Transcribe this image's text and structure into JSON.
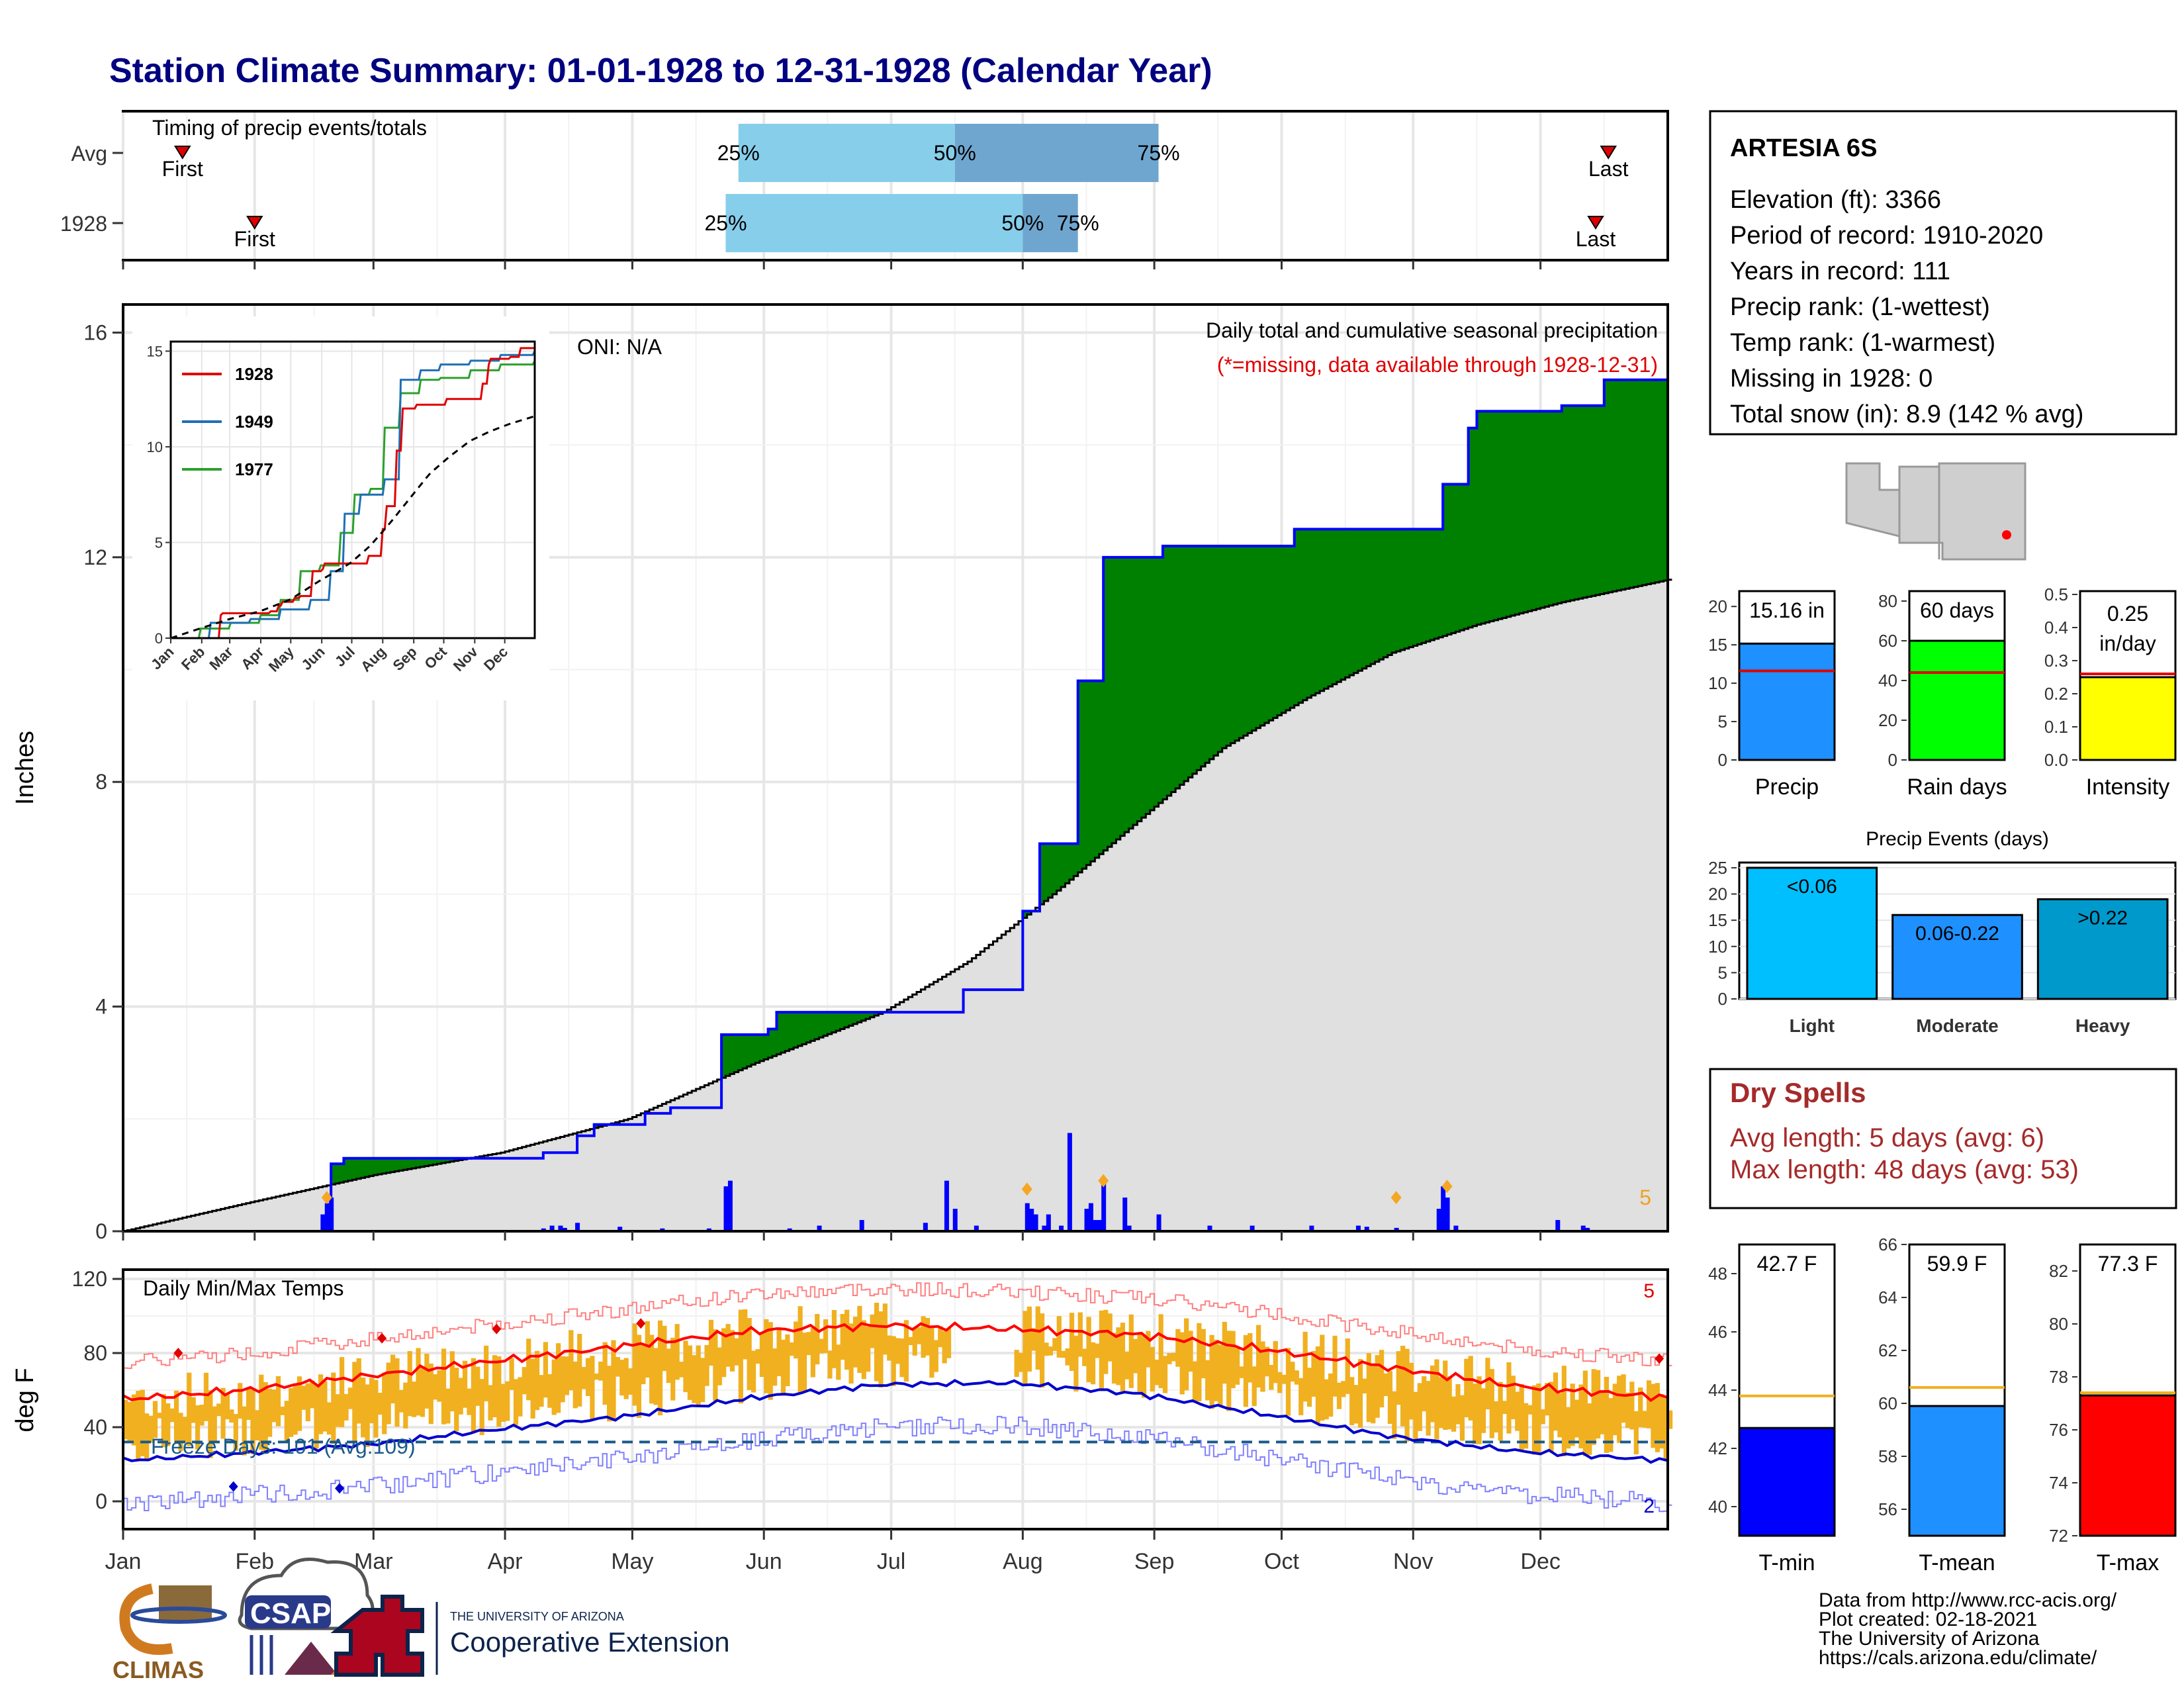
{
  "title": "Station Climate Summary: 01-01-1928 to 12-31-1928 (Calendar Year)",
  "colors": {
    "title": "#000080",
    "green": "#008000",
    "brown": "#8B5A00",
    "gray": "#e0e0e0",
    "blue": "#0000ff",
    "red": "#ff0000",
    "orange": "#f0b020",
    "lightblue": "#87ceeb",
    "midblue": "#6fa6cf"
  },
  "timing": {
    "label": "Timing of precip events/totals",
    "rows": [
      {
        "name": "Avg",
        "first_day": 15,
        "q25_day": 146,
        "q50_day": 197,
        "q75_day": 245,
        "last_day": 351,
        "labels": [
          "First",
          "25%",
          "50%",
          "75%",
          "Last"
        ]
      },
      {
        "name": "1928",
        "first_day": 32,
        "q25_day": 143,
        "q50_day": 213,
        "q75_day": 226,
        "last_day": 348,
        "labels": [
          "First",
          "25%",
          "50%",
          "75%",
          "Last"
        ]
      }
    ]
  },
  "precip": {
    "ylabel": "Inches",
    "yticks": [
      "0",
      "4",
      "8",
      "12",
      "16"
    ],
    "title": "Daily total and cumulative seasonal precipitation",
    "subtitle": "(*=missing, data available through 1928-12-31)",
    "oni": "ONI: N/A",
    "corner_count": "5"
  },
  "chart_data": [
    {
      "type": "area",
      "name": "cumulative precipitation 1928 vs average",
      "x_unit": "day of year",
      "series": [
        {
          "name": "1928 cumulative",
          "x": [
            1,
            45,
            50,
            53,
            80,
            100,
            108,
            112,
            120,
            124,
            130,
            142,
            153,
            155,
            170,
            180,
            190,
            199,
            210,
            213,
            217,
            220,
            226,
            232,
            246,
            277,
            292,
            312,
            318,
            320,
            340,
            350,
            365
          ],
          "values": [
            0,
            0,
            1.2,
            1.3,
            1.3,
            1.4,
            1.7,
            1.9,
            1.9,
            2.1,
            2.2,
            3.5,
            3.6,
            3.9,
            3.9,
            3.9,
            3.9,
            4.3,
            4.3,
            5.7,
            6.9,
            6.9,
            9.8,
            12.0,
            12.2,
            12.5,
            12.5,
            13.3,
            14.3,
            14.6,
            14.7,
            15.16,
            15.16
          ]
        },
        {
          "name": "average cumulative",
          "x": [
            1,
            30,
            60,
            90,
            120,
            150,
            180,
            200,
            220,
            240,
            260,
            280,
            300,
            320,
            340,
            365
          ],
          "values": [
            0,
            0.5,
            1.0,
            1.4,
            2.0,
            3.0,
            3.9,
            4.8,
            6.0,
            7.3,
            8.6,
            9.5,
            10.3,
            10.8,
            11.2,
            11.6
          ]
        }
      ],
      "ylim": [
        0,
        16.5
      ]
    },
    {
      "type": "bar",
      "name": "daily precipitation",
      "x": [
        48,
        49,
        50,
        100,
        102,
        104,
        105,
        108,
        118,
        128,
        139,
        143,
        144,
        158,
        165,
        175,
        190,
        195,
        197,
        202,
        214,
        215,
        216,
        218,
        219,
        222,
        224,
        228,
        229,
        230,
        231,
        232,
        237,
        238,
        245,
        257,
        267,
        281,
        292,
        294,
        301,
        311,
        312,
        313,
        315,
        339,
        345,
        346
      ],
      "values": [
        0.3,
        0.5,
        0.6,
        0.05,
        0.1,
        0.1,
        0.06,
        0.15,
        0.08,
        0.05,
        0.05,
        0.8,
        0.9,
        0.05,
        0.1,
        0.2,
        0.15,
        0.9,
        0.4,
        0.1,
        0.5,
        0.4,
        0.3,
        0.1,
        0.3,
        0.1,
        1.75,
        0.4,
        0.5,
        0.2,
        0.2,
        0.9,
        0.6,
        0.1,
        0.3,
        0.1,
        0.1,
        0.1,
        0.1,
        0.08,
        0.06,
        0.4,
        0.8,
        0.6,
        0.1,
        0.2,
        0.1,
        0.06
      ],
      "ylim": [
        0,
        16.5
      ]
    },
    {
      "type": "line",
      "name": "daily min/max temps",
      "title": "Daily Min/Max Temps",
      "ylabel": "deg F",
      "yticks": [
        "0",
        "40",
        "80",
        "120"
      ],
      "ylim": [
        -15,
        125
      ],
      "series": [
        {
          "name": "avg max",
          "x": [
            1,
            30,
            60,
            90,
            120,
            150,
            180,
            210,
            240,
            270,
            300,
            330,
            365
          ],
          "values": [
            55,
            60,
            68,
            76,
            84,
            92,
            95,
            93,
            90,
            82,
            72,
            62,
            56
          ]
        },
        {
          "name": "avg min",
          "x": [
            1,
            30,
            60,
            90,
            120,
            150,
            180,
            210,
            240,
            270,
            300,
            330,
            365
          ],
          "values": [
            22,
            26,
            31,
            39,
            46,
            56,
            63,
            64,
            58,
            47,
            35,
            27,
            22
          ]
        }
      ],
      "freeze_line": 32,
      "freeze_text": "Freeze Days: 101 (Avg:109)",
      "corner_top": "5",
      "corner_bottom": "2"
    },
    {
      "type": "bar",
      "name": "Precip",
      "categories": [
        "Precip"
      ],
      "values": [
        15.16
      ],
      "avg": 11.6,
      "label": "15.16 in",
      "yticks": [
        "0",
        "5",
        "10",
        "15",
        "20"
      ],
      "ylim": [
        0,
        22
      ]
    },
    {
      "type": "bar",
      "name": "Rain days",
      "categories": [
        "Rain days"
      ],
      "values": [
        60
      ],
      "avg": 44,
      "label": "60 days",
      "yticks": [
        "0",
        "20",
        "40",
        "60",
        "80"
      ],
      "ylim": [
        0,
        85
      ]
    },
    {
      "type": "bar",
      "name": "Intensity",
      "categories": [
        "Intensity"
      ],
      "values": [
        0.25
      ],
      "avg": 0.26,
      "label": "0.25 in/day",
      "yticks": [
        "0.0",
        "0.1",
        "0.2",
        "0.3",
        "0.4",
        "0.5"
      ],
      "ylim": [
        0,
        0.51
      ]
    },
    {
      "type": "bar",
      "name": "Precip Events (days)",
      "title": "Precip Events (days)",
      "categories": [
        "Light",
        "Moderate",
        "Heavy"
      ],
      "values": [
        25,
        16,
        19
      ],
      "bar_labels": [
        "<0.06",
        "0.06-0.22",
        ">0.22"
      ],
      "yticks": [
        "0",
        "5",
        "10",
        "15",
        "20",
        "25"
      ],
      "ylim": [
        0,
        26
      ]
    },
    {
      "type": "bar",
      "name": "T-min",
      "categories": [
        "T-min"
      ],
      "values": [
        42.7
      ],
      "avg": 43.8,
      "label": "42.7 F",
      "yticks": [
        "40",
        "42",
        "44",
        "46",
        "48"
      ],
      "ylim": [
        39,
        49
      ]
    },
    {
      "type": "bar",
      "name": "T-mean",
      "categories": [
        "T-mean"
      ],
      "values": [
        59.9
      ],
      "avg": 60.6,
      "label": "59.9 F",
      "yticks": [
        "56",
        "58",
        "60",
        "62",
        "64",
        "66"
      ],
      "ylim": [
        55,
        66
      ]
    },
    {
      "type": "bar",
      "name": "T-max",
      "categories": [
        "T-max"
      ],
      "values": [
        77.3
      ],
      "avg": 77.4,
      "label": "77.3 F",
      "yticks": [
        "72",
        "74",
        "76",
        "78",
        "80",
        "82"
      ],
      "ylim": [
        72,
        83
      ]
    }
  ],
  "months": [
    "Jan",
    "Feb",
    "Mar",
    "Apr",
    "May",
    "Jun",
    "Jul",
    "Aug",
    "Sep",
    "Oct",
    "Nov",
    "Dec"
  ],
  "inset": {
    "yticks": [
      "0",
      "5",
      "10",
      "15"
    ],
    "months": [
      "Jan",
      "Feb",
      "Mar",
      "Apr",
      "May",
      "Jun",
      "Jul",
      "Aug",
      "Sep",
      "Oct",
      "Nov",
      "Dec"
    ],
    "legend": [
      {
        "name": "1928",
        "color": "#e00000"
      },
      {
        "name": "1949",
        "color": "#1f6fb4"
      },
      {
        "name": "1977",
        "color": "#2ca02c"
      }
    ]
  },
  "station": {
    "name": "ARTESIA 6S",
    "lines": [
      "Elevation (ft): 3366",
      "Period of record: 1910-2020",
      "Years in record: 111",
      "Precip rank:  (1-wettest)",
      "Temp rank:  (1-warmest)",
      "Missing in 1928: 0",
      "Total snow (in): 8.9 (142 % avg)"
    ]
  },
  "dry_spells": {
    "title": "Dry Spells",
    "lines": [
      "Avg length: 5 days (avg: 6)",
      "Max length: 48 days (avg: 53)"
    ]
  },
  "footer": {
    "lines": [
      "Data from http://www.rcc-acis.org/",
      "Plot created: 02-18-2021",
      "The University of Arizona",
      "https://cals.arizona.edu/climate/"
    ],
    "logos": {
      "climas": "CLIMAS",
      "csap": "CSAP",
      "ua_small": "THE UNIVERSITY OF ARIZONA",
      "coop": "Cooperative Extension"
    }
  }
}
